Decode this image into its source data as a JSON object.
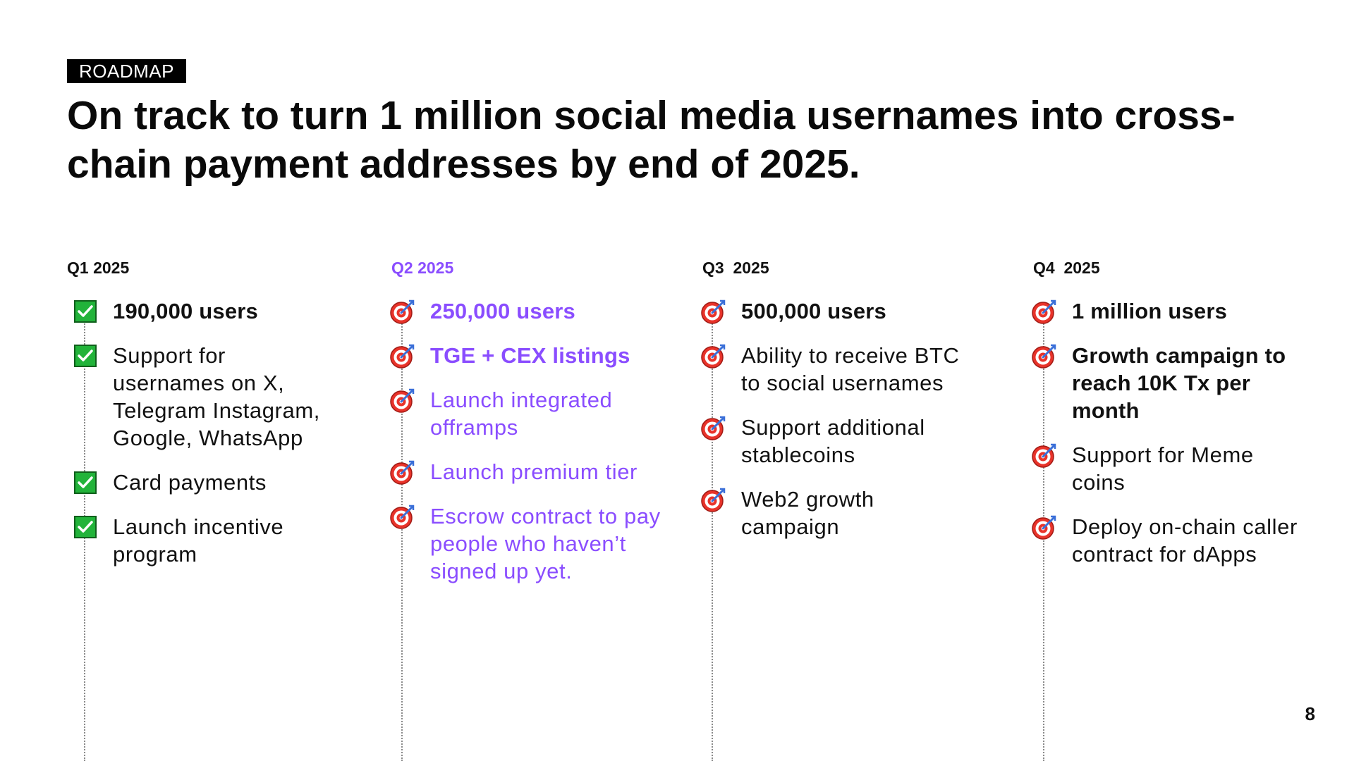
{
  "tag": "ROADMAP",
  "title": "On track to turn 1 million social media usernames into cross-chain payment addresses by end of 2025.",
  "colors": {
    "accent_purple": "#8a4dff",
    "check_green": "#22b33a",
    "target_red": "#e8332a"
  },
  "quarters": [
    {
      "label": "Q1 2025",
      "items": [
        {
          "text": "190,000 users",
          "icon": "check-icon"
        },
        {
          "text": "Support for usernames on X, Telegram Instagram, Google, WhatsApp",
          "icon": "check-icon"
        },
        {
          "text": "Card payments",
          "icon": "check-icon"
        },
        {
          "text": "Launch incentive program",
          "icon": "check-icon"
        }
      ]
    },
    {
      "label": "Q2 2025",
      "items": [
        {
          "text": "250,000 users",
          "icon": "target-icon"
        },
        {
          "text": "TGE + CEX listings",
          "icon": "target-icon"
        },
        {
          "text": "Launch integrated offramps",
          "icon": "target-icon"
        },
        {
          "text": "Launch premium tier",
          "icon": "target-icon"
        },
        {
          "text": "Escrow contract to pay people who haven’t signed up yet.",
          "icon": "target-icon"
        }
      ]
    },
    {
      "label": "Q3  2025",
      "items": [
        {
          "text": "500,000 users",
          "icon": "target-icon"
        },
        {
          "text": "Ability to receive BTC to social usernames",
          "icon": "target-icon"
        },
        {
          "text": "Support additional stablecoins",
          "icon": "target-icon"
        },
        {
          "text": "Web2 growth campaign",
          "icon": "target-icon"
        }
      ]
    },
    {
      "label": "Q4  2025",
      "items": [
        {
          "text": "1 million users",
          "icon": "target-icon"
        },
        {
          "text": "Growth campaign to reach 10K Tx per month",
          "icon": "target-icon"
        },
        {
          "text": "Support for Meme coins",
          "icon": "target-icon"
        },
        {
          "text": "Deploy on-chain caller contract for dApps",
          "icon": "target-icon"
        }
      ]
    }
  ],
  "page_number": "8"
}
